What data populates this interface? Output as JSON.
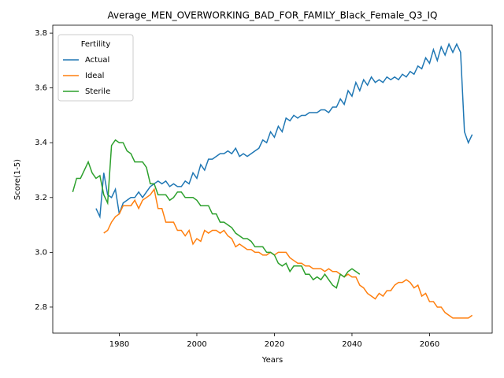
{
  "chart_data": {
    "type": "line",
    "title": "Average_MEN_OVERWORKING_BAD_FOR_FAMILY_Black_Female_Q3_IQ",
    "xlabel": "Years",
    "ylabel": "Score(1-5)",
    "legend_title": "Fertility",
    "legend": "upper left",
    "x": [
      1968,
      1969,
      1970,
      1971,
      1972,
      1973,
      1974,
      1975,
      1976,
      1977,
      1978,
      1979,
      1980,
      1981,
      1982,
      1983,
      1984,
      1985,
      1986,
      1987,
      1988,
      1989,
      1990,
      1991,
      1992,
      1993,
      1994,
      1995,
      1996,
      1997,
      1998,
      1999,
      2000,
      2001,
      2002,
      2003,
      2004,
      2005,
      2006,
      2007,
      2008,
      2009,
      2010,
      2011,
      2012,
      2013,
      2014,
      2015,
      2016,
      2017,
      2018,
      2019,
      2020,
      2021,
      2022,
      2023,
      2024,
      2025,
      2026,
      2027,
      2028,
      2029,
      2030,
      2031,
      2032,
      2033,
      2034,
      2035,
      2036,
      2037,
      2038,
      2039,
      2040,
      2041,
      2042,
      2043,
      2044,
      2045,
      2046,
      2047,
      2048,
      2049,
      2050,
      2051,
      2052,
      2053,
      2054,
      2055,
      2056,
      2057,
      2058,
      2059,
      2060,
      2061,
      2062,
      2063,
      2064,
      2065,
      2066,
      2067,
      2068,
      2069,
      2070,
      2071
    ],
    "series": [
      {
        "name": "Actual",
        "color": "#1f77b4",
        "values": [
          null,
          null,
          null,
          null,
          null,
          null,
          3.16,
          3.13,
          3.29,
          3.21,
          3.2,
          3.23,
          3.14,
          3.18,
          3.19,
          3.2,
          3.2,
          3.22,
          3.2,
          3.22,
          3.24,
          3.25,
          3.26,
          3.25,
          3.26,
          3.24,
          3.25,
          3.24,
          3.24,
          3.26,
          3.25,
          3.29,
          3.27,
          3.32,
          3.3,
          3.34,
          3.34,
          3.35,
          3.36,
          3.36,
          3.37,
          3.36,
          3.38,
          3.35,
          3.36,
          3.35,
          3.36,
          3.37,
          3.38,
          3.41,
          3.4,
          3.44,
          3.42,
          3.46,
          3.44,
          3.49,
          3.48,
          3.5,
          3.49,
          3.5,
          3.5,
          3.51,
          3.51,
          3.51,
          3.52,
          3.52,
          3.51,
          3.53,
          3.53,
          3.56,
          3.54,
          3.59,
          3.57,
          3.62,
          3.59,
          3.63,
          3.61,
          3.64,
          3.62,
          3.63,
          3.62,
          3.64,
          3.63,
          3.64,
          3.63,
          3.65,
          3.64,
          3.66,
          3.65,
          3.68,
          3.67,
          3.71,
          3.69,
          3.74,
          3.7,
          3.75,
          3.72,
          3.76,
          3.73,
          3.76,
          3.73,
          3.44,
          3.4,
          3.43
        ]
      },
      {
        "name": "Ideal",
        "color": "#ff7f0e",
        "values": [
          null,
          null,
          null,
          null,
          null,
          null,
          null,
          null,
          3.07,
          3.08,
          3.11,
          3.13,
          3.14,
          3.17,
          3.17,
          3.17,
          3.19,
          3.16,
          3.19,
          3.2,
          3.21,
          3.23,
          3.16,
          3.16,
          3.11,
          3.11,
          3.11,
          3.08,
          3.08,
          3.06,
          3.08,
          3.03,
          3.05,
          3.04,
          3.08,
          3.07,
          3.08,
          3.08,
          3.07,
          3.08,
          3.06,
          3.05,
          3.02,
          3.03,
          3.02,
          3.01,
          3.01,
          3.0,
          3.0,
          2.99,
          2.99,
          3.0,
          2.99,
          3.0,
          3.0,
          3.0,
          2.98,
          2.97,
          2.96,
          2.96,
          2.95,
          2.95,
          2.94,
          2.94,
          2.94,
          2.93,
          2.94,
          2.93,
          2.93,
          2.92,
          2.91,
          2.92,
          2.91,
          2.91,
          2.88,
          2.87,
          2.85,
          2.84,
          2.83,
          2.85,
          2.84,
          2.86,
          2.86,
          2.88,
          2.89,
          2.89,
          2.9,
          2.89,
          2.87,
          2.88,
          2.84,
          2.85,
          2.82,
          2.82,
          2.8,
          2.8,
          2.78,
          2.77,
          2.76,
          2.76,
          2.76,
          2.76,
          2.76,
          2.77
        ]
      },
      {
        "name": "Sterile",
        "color": "#2ca02c",
        "values": [
          3.22,
          3.27,
          3.27,
          3.3,
          3.33,
          3.29,
          3.27,
          3.28,
          3.21,
          3.18,
          3.39,
          3.41,
          3.4,
          3.4,
          3.37,
          3.36,
          3.33,
          3.33,
          3.33,
          3.31,
          3.25,
          3.25,
          3.21,
          3.21,
          3.21,
          3.19,
          3.2,
          3.22,
          3.22,
          3.2,
          3.2,
          3.2,
          3.19,
          3.17,
          3.17,
          3.17,
          3.14,
          3.14,
          3.11,
          3.11,
          3.1,
          3.09,
          3.07,
          3.06,
          3.05,
          3.05,
          3.04,
          3.02,
          3.02,
          3.02,
          3.0,
          3.0,
          2.99,
          2.96,
          2.95,
          2.96,
          2.93,
          2.95,
          2.95,
          2.95,
          2.92,
          2.92,
          2.9,
          2.91,
          2.9,
          2.92,
          2.9,
          2.88,
          2.87,
          2.92,
          2.91,
          2.93,
          2.94,
          2.93,
          2.92,
          null,
          null,
          null,
          null,
          null,
          null,
          null,
          null,
          null,
          null,
          null,
          null,
          null,
          null,
          null,
          null,
          null,
          null,
          null,
          null,
          null,
          null,
          null,
          null,
          null,
          null,
          null,
          null,
          null
        ]
      }
    ],
    "xlim": [
      1962.85,
      2076.15
    ],
    "xticks": [
      1980,
      2000,
      2020,
      2040,
      2060
    ],
    "ylim": [
      2.705,
      3.829
    ],
    "yticks": [
      2.8,
      {
        "value": 3,
        "label": "3.0"
      },
      3.2,
      3.4,
      3.6,
      3.8
    ]
  }
}
